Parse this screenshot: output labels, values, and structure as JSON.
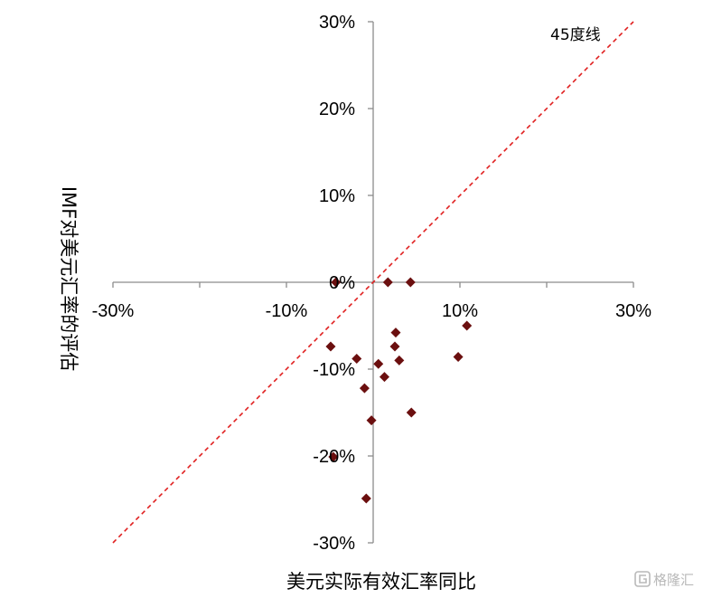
{
  "chart_data": {
    "type": "scatter",
    "xlabel": "美元实际有效汇率同比",
    "ylabel": "IMF对美元汇率的评估",
    "xlim": [
      -30,
      30
    ],
    "ylim": [
      -30,
      30
    ],
    "x_ticks": [
      {
        "value": -30,
        "label": "-30%"
      },
      {
        "value": -10,
        "label": "-10%"
      },
      {
        "value": 10,
        "label": "10%"
      },
      {
        "value": 30,
        "label": "30%"
      }
    ],
    "y_ticks": [
      {
        "value": 30,
        "label": "30%"
      },
      {
        "value": 20,
        "label": "20%"
      },
      {
        "value": 10,
        "label": "10%"
      },
      {
        "value": 0,
        "label": "0%"
      },
      {
        "value": -10,
        "label": "-10%"
      },
      {
        "value": -20,
        "label": "-20%"
      },
      {
        "value": -30,
        "label": "-30%"
      }
    ],
    "grid": false,
    "marker_color": "#6b0f0f",
    "reference_line": {
      "label": "45度线",
      "slope": 1,
      "intercept": 0,
      "color": "#e02020",
      "style": "dashed"
    },
    "points": [
      {
        "x": -4.3,
        "y": 0
      },
      {
        "x": 1.7,
        "y": 0
      },
      {
        "x": 4.3,
        "y": 0
      },
      {
        "x": 10.8,
        "y": -5.0
      },
      {
        "x": 2.6,
        "y": -5.8
      },
      {
        "x": -4.9,
        "y": -7.4
      },
      {
        "x": 2.5,
        "y": -7.4
      },
      {
        "x": -1.9,
        "y": -8.8
      },
      {
        "x": 3.0,
        "y": -9.0
      },
      {
        "x": 0.6,
        "y": -9.4
      },
      {
        "x": 9.8,
        "y": -8.6
      },
      {
        "x": 1.3,
        "y": -10.9
      },
      {
        "x": -1.0,
        "y": -12.2
      },
      {
        "x": -0.2,
        "y": -15.9
      },
      {
        "x": 4.4,
        "y": -15.0
      },
      {
        "x": -4.6,
        "y": -20.1
      },
      {
        "x": -0.8,
        "y": -24.9
      }
    ]
  },
  "watermark": {
    "text": "格隆汇",
    "icon": "glh-logo-icon"
  }
}
